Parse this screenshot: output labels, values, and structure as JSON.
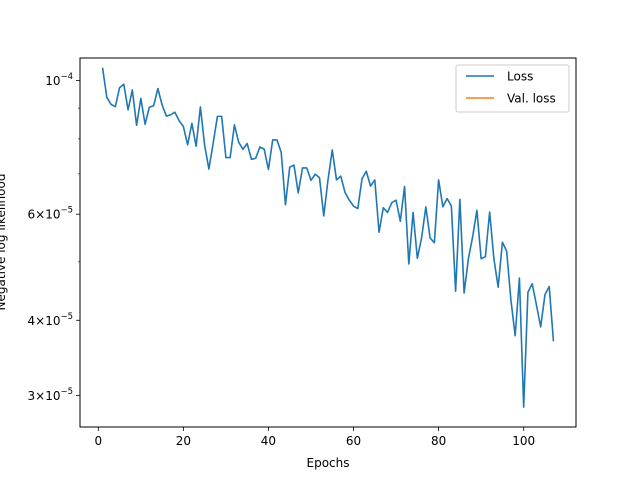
{
  "chart_data": {
    "type": "line",
    "title": "",
    "xlabel": "Epochs",
    "ylabel": "Negative log likelihood",
    "y_scale": "log",
    "xlim": [
      -4.3,
      112.3
    ],
    "ylim": [
      2.66e-05,
      0.000109
    ],
    "x_ticks": [
      {
        "value": 0,
        "label": "0"
      },
      {
        "value": 20,
        "label": "20"
      },
      {
        "value": 40,
        "label": "40"
      },
      {
        "value": 60,
        "label": "60"
      },
      {
        "value": 80,
        "label": "80"
      },
      {
        "value": 100,
        "label": "100"
      }
    ],
    "y_ticks": [
      {
        "value": 0.0001,
        "mant": "",
        "exp": "−4"
      },
      {
        "value": 6e-05,
        "mant": "6",
        "exp": "−5"
      },
      {
        "value": 4e-05,
        "mant": "4",
        "exp": "−5"
      },
      {
        "value": 3e-05,
        "mant": "3",
        "exp": "−5"
      }
    ],
    "y_minor_ticks": [
      5e-05,
      7e-05,
      8e-05,
      9e-05
    ],
    "grid": false,
    "legend_position": "top-right",
    "series": [
      {
        "name": "Loss",
        "color": "#1f77b4",
        "x": [
          1,
          2,
          3,
          4,
          5,
          6,
          7,
          8,
          9,
          10,
          11,
          12,
          13,
          14,
          15,
          16,
          17,
          18,
          19,
          20,
          21,
          22,
          23,
          24,
          25,
          26,
          27,
          28,
          29,
          30,
          31,
          32,
          33,
          34,
          35,
          36,
          37,
          38,
          39,
          40,
          41,
          42,
          43,
          44,
          45,
          46,
          47,
          48,
          49,
          50,
          51,
          52,
          53,
          54,
          55,
          56,
          57,
          58,
          59,
          60,
          61,
          62,
          63,
          64,
          65,
          66,
          67,
          68,
          69,
          70,
          71,
          72,
          73,
          74,
          75,
          76,
          77,
          78,
          79,
          80,
          81,
          82,
          83,
          84,
          85,
          86,
          87,
          88,
          89,
          90,
          91,
          92,
          93,
          94,
          95,
          96,
          97,
          98,
          99,
          100,
          101,
          102,
          103,
          104,
          105,
          106,
          107
        ],
        "y": [
          0.000105,
          9.38e-05,
          9.13e-05,
          9.05e-05,
          9.73e-05,
          9.86e-05,
          8.94e-05,
          9.65e-05,
          8.43e-05,
          9.34e-05,
          8.46e-05,
          9.03e-05,
          9.08e-05,
          9.7e-05,
          9.11e-05,
          8.73e-05,
          8.77e-05,
          8.86e-05,
          8.58e-05,
          8.39e-05,
          7.82e-05,
          8.49e-05,
          7.78e-05,
          9.04e-05,
          7.81e-05,
          7.13e-05,
          7.87e-05,
          8.72e-05,
          8.72e-05,
          7.45e-05,
          7.45e-05,
          8.44e-05,
          7.9e-05,
          7.69e-05,
          7.86e-05,
          7.4e-05,
          7.43e-05,
          7.76e-05,
          7.69e-05,
          7.12e-05,
          7.97e-05,
          7.97e-05,
          7.6e-05,
          6.22e-05,
          7.18e-05,
          7.24e-05,
          6.51e-05,
          7.16e-05,
          7.16e-05,
          6.83e-05,
          6.99e-05,
          6.9e-05,
          5.96e-05,
          6.84e-05,
          7.67e-05,
          6.84e-05,
          6.94e-05,
          6.52e-05,
          6.33e-05,
          6.19e-05,
          6.13e-05,
          6.87e-05,
          7.07e-05,
          6.68e-05,
          6.84e-05,
          5.6e-05,
          6.15e-05,
          6.04e-05,
          6.27e-05,
          6.33e-05,
          5.84e-05,
          6.67e-05,
          4.96e-05,
          6.04e-05,
          5.07e-05,
          5.48e-05,
          6.17e-05,
          5.48e-05,
          5.38e-05,
          6.84e-05,
          6.17e-05,
          6.37e-05,
          6.19e-05,
          4.47e-05,
          6.35e-05,
          4.44e-05,
          5.06e-05,
          5.5e-05,
          6.09e-05,
          5.06e-05,
          5.1e-05,
          6.05e-05,
          5.06e-05,
          4.54e-05,
          5.39e-05,
          5.21e-05,
          4.32e-05,
          3.77e-05,
          4.7e-05,
          2.87e-05,
          4.45e-05,
          4.6e-05,
          4.24e-05,
          3.9e-05,
          4.41e-05,
          4.55e-05,
          3.69e-05
        ]
      },
      {
        "name": "Val. loss",
        "color": "#ff7f0e",
        "x": [],
        "y": []
      }
    ]
  }
}
